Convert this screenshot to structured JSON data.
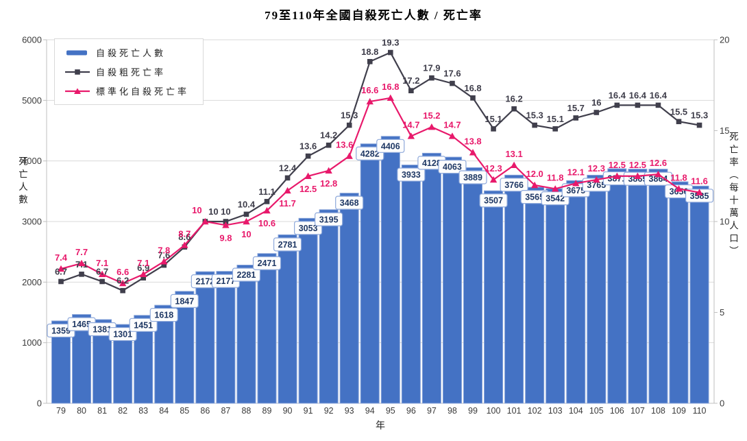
{
  "chart_data": {
    "type": "bar",
    "subtype": "combo-bar-line",
    "title": "79至110年全國自殺死亡人數 / 死亡率",
    "xlabel": "年",
    "ylabel_left": "死亡人數",
    "ylabel_right": "死亡率（每十萬人口）",
    "ylim_left": [
      0,
      6000
    ],
    "ylim_right": [
      0,
      20
    ],
    "yticks_left": [
      0,
      1000,
      2000,
      3000,
      4000,
      5000,
      6000
    ],
    "yticks_right": [
      0,
      5,
      10,
      15,
      20
    ],
    "grid": true,
    "legend_position": "top-left",
    "categories": [
      "79",
      "80",
      "81",
      "82",
      "83",
      "84",
      "85",
      "86",
      "87",
      "88",
      "89",
      "90",
      "91",
      "92",
      "93",
      "94",
      "95",
      "96",
      "97",
      "98",
      "99",
      "100",
      "101",
      "102",
      "103",
      "104",
      "105",
      "106",
      "107",
      "108",
      "109",
      "110"
    ],
    "series": [
      {
        "name": "自殺死亡人數",
        "type": "bar",
        "axis": "left",
        "color": "#4472C4",
        "values": [
          1359,
          1465,
          1381,
          1301,
          1451,
          1618,
          1847,
          2172,
          2177,
          2281,
          2471,
          2781,
          3053,
          3195,
          3468,
          4282,
          4406,
          3933,
          4128,
          4063,
          3889,
          3507,
          3766,
          3565,
          3542,
          3675,
          3765,
          3871,
          3865,
          3864,
          3656,
          3585
        ]
      },
      {
        "name": "自殺粗死亡率",
        "type": "line",
        "marker": "square",
        "axis": "right",
        "color": "#403F4C",
        "values": [
          6.7,
          7.1,
          6.7,
          6.2,
          6.9,
          7.6,
          8.6,
          10,
          10,
          10.4,
          11.1,
          12.4,
          13.6,
          14.2,
          15.3,
          18.8,
          19.3,
          17.2,
          17.9,
          17.6,
          16.8,
          15.1,
          16.2,
          15.3,
          15.1,
          15.7,
          16,
          16.4,
          16.4,
          16.4,
          15.5,
          15.3
        ],
        "labels": [
          "6.7",
          "7.1",
          "6.7",
          "6.2",
          "6.9",
          "7.6",
          "8.6",
          "10",
          "10",
          "10.4",
          "11.1",
          "12.4",
          "13.6",
          "14.2",
          "15.3",
          "18.8",
          "19.3",
          "17.2",
          "17.9",
          "17.6",
          "16.8",
          "15.1",
          "16.2",
          "15.3",
          "15.1",
          "15.7",
          "16",
          "16.4",
          "16.4",
          "16.4",
          "15.5",
          "15.3"
        ]
      },
      {
        "name": "標準化自殺死亡率",
        "type": "line",
        "marker": "triangle",
        "axis": "right",
        "color": "#E8196B",
        "values": [
          7.4,
          7.7,
          7.1,
          6.6,
          7.1,
          7.8,
          8.7,
          10,
          9.8,
          10,
          10.6,
          11.7,
          12.5,
          12.8,
          13.6,
          16.6,
          16.8,
          14.7,
          15.2,
          14.7,
          13.8,
          12.3,
          13.1,
          12.0,
          11.8,
          12.1,
          12.3,
          12.5,
          12.5,
          12.6,
          11.8,
          11.6
        ],
        "labels": [
          "7.4",
          "7.7",
          "7.1",
          "6.6",
          "7.1",
          "7.8",
          "8.7",
          "10",
          "9.8",
          "10",
          "10.6",
          "11.7",
          "12.5",
          "12.8",
          "13.6",
          "16.6",
          "16.8",
          "14.7",
          "15.2",
          "14.7",
          "13.8",
          "12.3",
          "13.1",
          "12.0",
          "11.8",
          "12.1",
          "12.3",
          "12.5",
          "12.5",
          "12.6",
          "11.8",
          "11.6"
        ]
      }
    ],
    "colors": {
      "bar_fill": "#4472C4",
      "bar_border": "#84A1D8",
      "bar_label_text": "#1F3864",
      "bar_label_box_border": "#8EA9DB",
      "crude_line": "#403F4C",
      "std_line": "#E8196B",
      "grid": "#D9D9D9",
      "axis": "#BFBFBF"
    }
  }
}
